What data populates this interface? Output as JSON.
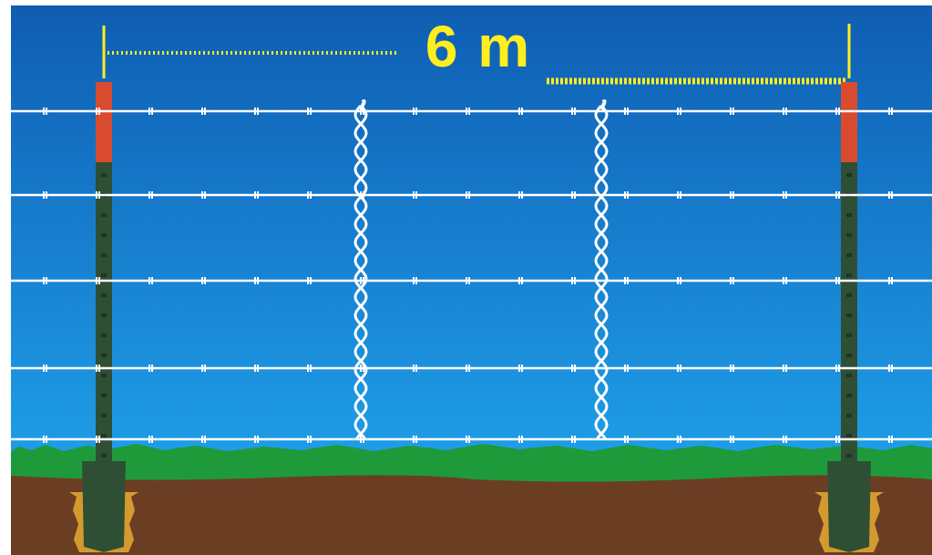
{
  "diagram": {
    "spacing_label": "6 m",
    "wire_count": 5,
    "dropper_count": 2,
    "post_count": 2
  },
  "colors": {
    "sky_top": "#0f5db2",
    "sky_bottom": "#1f9ee8",
    "grass": "#1f9a3a",
    "soil": "#6b3e24",
    "dig": "#d59a2e",
    "post": "#2f4f35",
    "post_cap": "#d94b2e",
    "wire": "#ffffff",
    "dimension": "#ffee1e"
  }
}
